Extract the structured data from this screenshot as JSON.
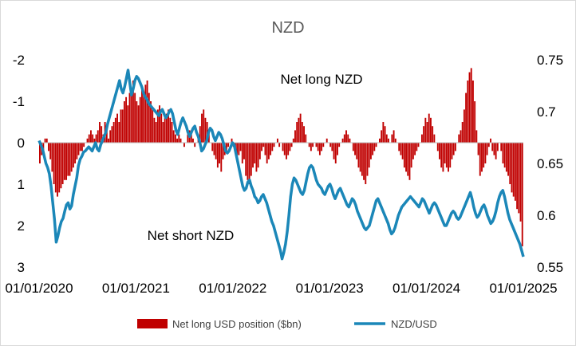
{
  "chart_data": {
    "type": "bar+line",
    "title": "NZD",
    "x_tick_labels": [
      "01/01/2020",
      "01/01/2021",
      "01/01/2022",
      "01/01/2023",
      "01/01/2024",
      "01/01/2025"
    ],
    "y_left": {
      "ticks": [
        "-2",
        "-1",
        "0",
        "1",
        "2",
        "3"
      ],
      "range": [
        -2,
        3
      ],
      "inverted": true
    },
    "y_right": {
      "ticks": [
        "0.75",
        "0.7",
        "0.65",
        "0.6",
        "0.55"
      ],
      "range": [
        0.55,
        0.75
      ]
    },
    "annotations": {
      "top": "Net long NZD",
      "bottom": "Net short NZD"
    },
    "legend": [
      {
        "label": "Net long USD position ($bn)",
        "color": "#c00000",
        "marker": "bar"
      },
      {
        "label": "NZD/USD",
        "color": "#1b87b8",
        "marker": "line"
      }
    ],
    "grid": false,
    "series": [
      {
        "name": "Net long USD position ($bn)",
        "axis": "left",
        "kind": "bar",
        "color": "#c00000",
        "x_start": "2020-01-01",
        "x_end": "2025-01-01",
        "values": [
          0.5,
          0.3,
          0.2,
          -0.1,
          -0.1,
          0.2,
          0.4,
          0.7,
          1.0,
          1.2,
          1.3,
          1.2,
          1.1,
          1.0,
          0.9,
          0.9,
          0.8,
          0.8,
          0.7,
          0.6,
          0.5,
          0.4,
          0.3,
          0.2,
          0.2,
          0.1,
          0.0,
          -0.1,
          -0.2,
          -0.3,
          -0.2,
          -0.1,
          -0.2,
          -0.3,
          -0.5,
          -0.4,
          -0.2,
          -0.5,
          -0.3,
          -0.1,
          -0.3,
          -0.4,
          -0.5,
          -0.6,
          -0.7,
          -0.5,
          -0.8,
          -0.8,
          -1.0,
          -1.1,
          -0.9,
          -1.2,
          -1.3,
          -1.5,
          -1.2,
          -1.0,
          -0.9,
          -1.1,
          -1.3,
          -1.2,
          -1.4,
          -1.5,
          -1.2,
          -1.0,
          -0.8,
          -0.6,
          -0.5,
          -0.8,
          -0.9,
          -0.7,
          -0.5,
          -0.6,
          -0.7,
          -0.8,
          -0.6,
          -0.5,
          -0.3,
          -0.2,
          -0.1,
          -0.2,
          -0.1,
          0.0,
          0.1,
          0.0,
          -0.2,
          -0.3,
          -0.2,
          -0.1,
          0.1,
          0.0,
          -0.2,
          -0.4,
          -0.7,
          -0.8,
          -0.6,
          -0.5,
          -0.3,
          0.0,
          0.2,
          0.3,
          0.4,
          0.6,
          0.5,
          0.7,
          0.4,
          0.3,
          0.2,
          0.1,
          0.0,
          -0.1,
          0.1,
          0.2,
          0.4,
          0.3,
          0.2,
          0.5,
          0.4,
          0.8,
          0.9,
          1.0,
          0.8,
          0.6,
          0.5,
          0.7,
          0.6,
          0.4,
          0.2,
          0.1,
          0.3,
          0.5,
          0.4,
          0.3,
          0.2,
          0.1,
          0.0,
          -0.1,
          0.1,
          0.0,
          0.2,
          0.3,
          0.4,
          0.3,
          0.2,
          0.1,
          -0.1,
          -0.3,
          -0.5,
          -0.6,
          -0.7,
          -0.5,
          -0.4,
          -0.2,
          0.0,
          0.1,
          0.2,
          0.1,
          0.0,
          0.1,
          0.2,
          0.3,
          0.2,
          0.1,
          0.0,
          -0.1,
          0.0,
          0.1,
          0.2,
          0.4,
          0.5,
          0.3,
          0.1,
          0.0,
          -0.1,
          -0.2,
          -0.3,
          -0.2,
          -0.1,
          0.0,
          0.2,
          0.3,
          0.4,
          0.6,
          0.7,
          0.8,
          0.9,
          1.0,
          0.8,
          0.6,
          0.4,
          0.3,
          0.2,
          0.1,
          0.0,
          -0.1,
          -0.3,
          -0.5,
          -0.4,
          -0.2,
          -0.1,
          0.0,
          -0.2,
          -0.3,
          -0.1,
          0.0,
          0.2,
          0.3,
          0.4,
          0.6,
          0.7,
          0.8,
          0.9,
          0.6,
          0.4,
          0.3,
          0.2,
          0.1,
          0.0,
          -0.2,
          -0.4,
          -0.6,
          -0.5,
          -0.7,
          -0.6,
          -0.4,
          -0.2,
          0.0,
          0.2,
          0.4,
          0.6,
          0.7,
          0.5,
          0.6,
          0.7,
          0.6,
          0.4,
          0.3,
          0.2,
          0.0,
          -0.2,
          -0.3,
          -0.5,
          -0.8,
          -1.2,
          -1.5,
          -1.7,
          -1.8,
          -1.5,
          -1.0,
          -0.3,
          0.3,
          0.8,
          0.7,
          0.6,
          0.5,
          0.3,
          0.1,
          -0.1,
          0.2,
          0.3,
          0.4,
          0.2,
          0.0,
          0.2,
          0.5,
          0.6,
          0.7,
          0.8,
          1.0,
          1.2,
          1.3,
          1.4,
          1.6,
          1.7,
          1.9,
          2.5
        ]
      },
      {
        "name": "NZD/USD",
        "axis": "right",
        "kind": "line",
        "color": "#1b87b8",
        "x_start": "2020-01-01",
        "x_end": "2025-01-01",
        "values": [
          0.672,
          0.668,
          0.664,
          0.657,
          0.65,
          0.646,
          0.64,
          0.628,
          0.612,
          0.596,
          0.574,
          0.58,
          0.588,
          0.594,
          0.597,
          0.604,
          0.61,
          0.612,
          0.606,
          0.609,
          0.62,
          0.628,
          0.636,
          0.648,
          0.654,
          0.657,
          0.661,
          0.662,
          0.664,
          0.666,
          0.664,
          0.662,
          0.666,
          0.67,
          0.664,
          0.662,
          0.668,
          0.672,
          0.676,
          0.68,
          0.688,
          0.694,
          0.7,
          0.706,
          0.712,
          0.718,
          0.724,
          0.73,
          0.722,
          0.718,
          0.724,
          0.732,
          0.74,
          0.728,
          0.716,
          0.722,
          0.73,
          0.734,
          0.732,
          0.728,
          0.724,
          0.718,
          0.714,
          0.712,
          0.708,
          0.706,
          0.704,
          0.702,
          0.7,
          0.698,
          0.696,
          0.7,
          0.702,
          0.698,
          0.694,
          0.696,
          0.7,
          0.702,
          0.698,
          0.69,
          0.682,
          0.678,
          0.684,
          0.69,
          0.694,
          0.69,
          0.686,
          0.68,
          0.676,
          0.68,
          0.684,
          0.686,
          0.68,
          0.676,
          0.67,
          0.662,
          0.664,
          0.668,
          0.672,
          0.68,
          0.684,
          0.682,
          0.676,
          0.672,
          0.676,
          0.68,
          0.678,
          0.674,
          0.668,
          0.662,
          0.66,
          0.662,
          0.666,
          0.67,
          0.668,
          0.66,
          0.652,
          0.644,
          0.636,
          0.628,
          0.624,
          0.626,
          0.632,
          0.634,
          0.628,
          0.624,
          0.618,
          0.616,
          0.612,
          0.614,
          0.618,
          0.62,
          0.616,
          0.612,
          0.606,
          0.6,
          0.594,
          0.59,
          0.584,
          0.578,
          0.572,
          0.566,
          0.558,
          0.564,
          0.572,
          0.584,
          0.6,
          0.618,
          0.63,
          0.636,
          0.634,
          0.63,
          0.626,
          0.622,
          0.62,
          0.624,
          0.632,
          0.64,
          0.646,
          0.648,
          0.646,
          0.64,
          0.634,
          0.63,
          0.628,
          0.626,
          0.622,
          0.62,
          0.624,
          0.628,
          0.63,
          0.626,
          0.62,
          0.616,
          0.62,
          0.624,
          0.626,
          0.622,
          0.618,
          0.614,
          0.61,
          0.608,
          0.612,
          0.616,
          0.614,
          0.61,
          0.604,
          0.6,
          0.596,
          0.592,
          0.588,
          0.586,
          0.588,
          0.59,
          0.596,
          0.602,
          0.608,
          0.614,
          0.616,
          0.612,
          0.608,
          0.604,
          0.6,
          0.596,
          0.592,
          0.586,
          0.582,
          0.584,
          0.588,
          0.594,
          0.6,
          0.604,
          0.608,
          0.61,
          0.612,
          0.614,
          0.616,
          0.618,
          0.616,
          0.614,
          0.612,
          0.61,
          0.608,
          0.612,
          0.616,
          0.614,
          0.61,
          0.606,
          0.602,
          0.606,
          0.61,
          0.612,
          0.61,
          0.606,
          0.602,
          0.598,
          0.594,
          0.59,
          0.59,
          0.594,
          0.598,
          0.602,
          0.604,
          0.602,
          0.598,
          0.596,
          0.598,
          0.602,
          0.606,
          0.61,
          0.614,
          0.618,
          0.622,
          0.616,
          0.608,
          0.602,
          0.598,
          0.6,
          0.604,
          0.608,
          0.61,
          0.606,
          0.6,
          0.596,
          0.592,
          0.594,
          0.598,
          0.604,
          0.612,
          0.618,
          0.622,
          0.624,
          0.618,
          0.61,
          0.602,
          0.596,
          0.592,
          0.588,
          0.584,
          0.58,
          0.576,
          0.572,
          0.566,
          0.56
        ]
      }
    ]
  }
}
